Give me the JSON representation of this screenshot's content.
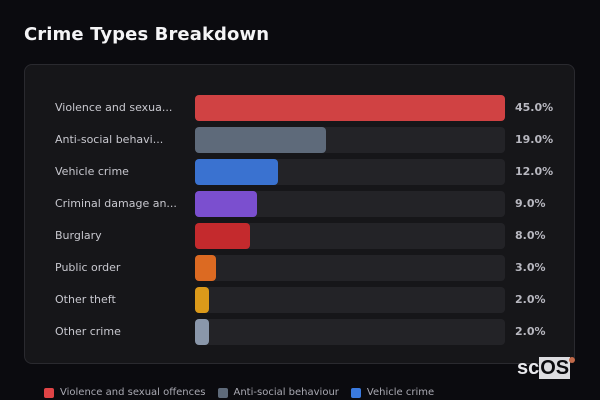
{
  "header": {
    "title": "Crime Types Breakdown"
  },
  "chart_data": {
    "type": "bar",
    "orientation": "horizontal",
    "title": "Crime Types Breakdown",
    "xlabel": "",
    "ylabel": "",
    "xlim": [
      0,
      45
    ],
    "grid": false,
    "legend_position": "bottom",
    "categories": [
      "Violence and sexual offences",
      "Anti-social behaviour",
      "Vehicle crime",
      "Criminal damage and arson",
      "Burglary",
      "Public order",
      "Other theft",
      "Other crime"
    ],
    "display_labels": [
      "Violence and sexua...",
      "Anti-social behavi...",
      "Vehicle crime",
      "Criminal damage an...",
      "Burglary",
      "Public order",
      "Other theft",
      "Other crime"
    ],
    "values": [
      45.0,
      19.0,
      12.0,
      9.0,
      8.0,
      3.0,
      2.0,
      2.0
    ],
    "value_labels": [
      "45.0%",
      "19.0%",
      "12.0%",
      "9.0%",
      "8.0%",
      "3.0%",
      "2.0%",
      "2.0%"
    ],
    "colors": [
      "#d04243",
      "#5e6a7a",
      "#3a72d0",
      "#7b4fcf",
      "#c42a2d",
      "#dc6a22",
      "#dc9a1a",
      "#8a97aa"
    ]
  },
  "rows": [
    {
      "label": "Violence and sexua...",
      "value": "45.0%",
      "pct": 100,
      "color": "#d04243"
    },
    {
      "label": "Anti-social behavi...",
      "value": "19.0%",
      "pct": 42.2,
      "color": "#5e6a7a"
    },
    {
      "label": "Vehicle crime",
      "value": "12.0%",
      "pct": 26.7,
      "color": "#3a72d0"
    },
    {
      "label": "Criminal damage an...",
      "value": "9.0%",
      "pct": 20,
      "color": "#7b4fcf"
    },
    {
      "label": "Burglary",
      "value": "8.0%",
      "pct": 17.8,
      "color": "#c42a2d"
    },
    {
      "label": "Public order",
      "value": "3.0%",
      "pct": 6.7,
      "color": "#dc6a22"
    },
    {
      "label": "Other theft",
      "value": "2.0%",
      "pct": 4.4,
      "color": "#dc9a1a"
    },
    {
      "label": "Other crime",
      "value": "2.0%",
      "pct": 4.4,
      "color": "#8a97aa"
    }
  ],
  "legend": [
    {
      "label": "Violence and sexual offences",
      "color": "#e04446"
    },
    {
      "label": "Anti-social behaviour",
      "color": "#5e6a7a"
    },
    {
      "label": "Vehicle crime",
      "color": "#3a7ae0"
    }
  ],
  "watermark": {
    "prefix": "sc",
    "suffix": "OS"
  }
}
